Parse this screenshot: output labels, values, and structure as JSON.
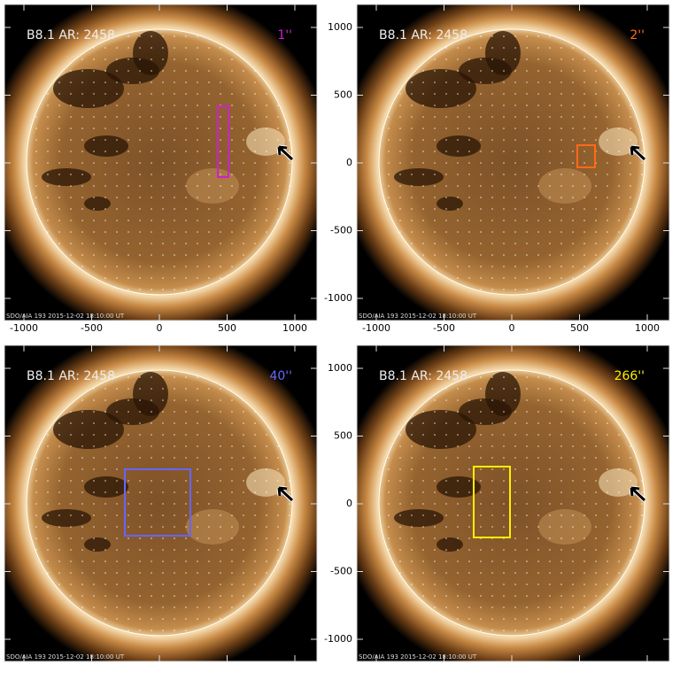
{
  "panels": [
    {
      "label": "B8.1 AR: 2458",
      "tag": "1''",
      "footer": "SDO/AIA 193  2015-12-02 18:10:00 UT"
    },
    {
      "label": "B8.1 AR: 2458",
      "tag": "2''",
      "footer": "SDO/AIA 193  2015-12-02 18:10:00 UT"
    },
    {
      "label": "B8.1 AR: 2458",
      "tag": "40''",
      "footer": "SDO/AIA 193  2015-12-02 18:10:00 UT"
    },
    {
      "label": "B8.1 AR: 2458",
      "tag": "266''",
      "footer": "SDO/AIA 193  2015-12-02 18:10:00 UT"
    }
  ],
  "x_axis": {
    "ticks": [
      "-1000",
      "-500",
      "0",
      "500",
      "1000"
    ]
  },
  "y_axis": {
    "ticks": [
      "1000",
      "500",
      "0",
      "-500",
      "-1000"
    ]
  }
}
